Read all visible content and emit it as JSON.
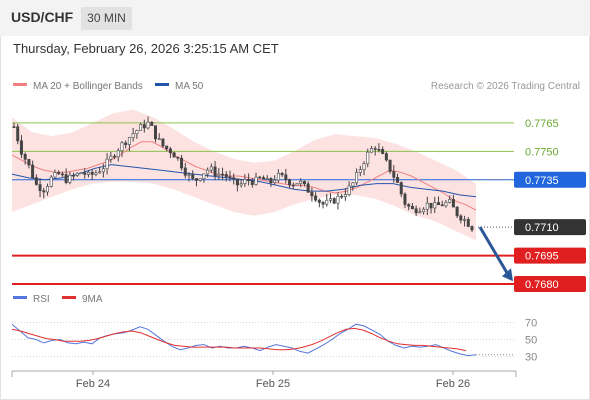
{
  "header": {
    "symbol": "USD/CHF",
    "timeframe": "30 MIN",
    "datetime": "Thursday, February 26, 2026 3:25:15 AM CET"
  },
  "legend": {
    "ma20": "MA 20 + Bollinger Bands",
    "ma50": "MA 50",
    "credit": "Research © 2026 Trading Central",
    "rsi": "RSI",
    "ma9": "9MA"
  },
  "colors": {
    "candle": "#444444",
    "ma20": "#f08080",
    "bands": "#fde2e2",
    "ma50": "#2255aa",
    "resistance": "#8bc34a",
    "pivot": "#2266dd",
    "support": "#e02020",
    "rsi": "#5577dd",
    "rsi_ma": "#e03030",
    "current_label": "#333333"
  },
  "chart_data": [
    {
      "type": "candlestick",
      "ylim": [
        0.76795,
        0.77797
      ],
      "x_labels": [
        "Feb 24",
        "Feb 25",
        "Feb 26"
      ],
      "current_price": "0.7710",
      "key_levels": [
        {
          "label": "0.7765",
          "value": 0.7765,
          "kind": "resistance"
        },
        {
          "label": "0.7750",
          "value": 0.775,
          "kind": "resistance"
        },
        {
          "label": "0.7735",
          "value": 0.7735,
          "kind": "pivot"
        },
        {
          "label": "0.7695",
          "value": 0.7695,
          "kind": "support"
        },
        {
          "label": "0.7680",
          "value": 0.768,
          "kind": "support"
        }
      ],
      "forecast_arrow": {
        "from": 0.771,
        "to": 0.7682
      },
      "close_path": [
        0.7763,
        0.775,
        0.7742,
        0.7732,
        0.773,
        0.7736,
        0.7738,
        0.7735,
        0.7737,
        0.7739,
        0.7737,
        0.7739,
        0.7742,
        0.7747,
        0.7752,
        0.7756,
        0.776,
        0.7763,
        0.7765,
        0.7757,
        0.7752,
        0.775,
        0.7745,
        0.7738,
        0.7734,
        0.7738,
        0.7741,
        0.7738,
        0.7738,
        0.7734,
        0.7732,
        0.7735,
        0.7734,
        0.7736,
        0.7733,
        0.7737,
        0.7736,
        0.7733,
        0.7734,
        0.773,
        0.7727,
        0.7722,
        0.7723,
        0.7725,
        0.7728,
        0.7732,
        0.774,
        0.7748,
        0.7753,
        0.7748,
        0.7741,
        0.7734,
        0.7723,
        0.7719,
        0.772,
        0.7722,
        0.7721,
        0.7722,
        0.7723,
        0.7717,
        0.7714,
        0.771
      ],
      "ma20": [
        0.7748,
        0.7745,
        0.7742,
        0.774,
        0.7739,
        0.7739,
        0.774,
        0.7741,
        0.7743,
        0.7745,
        0.7748,
        0.7752,
        0.7755,
        0.7755,
        0.7752,
        0.7748,
        0.7745,
        0.7742,
        0.774,
        0.7738,
        0.7737,
        0.7737,
        0.7736,
        0.7735,
        0.7734,
        0.7733,
        0.7732,
        0.7732,
        0.7731,
        0.7729,
        0.7728,
        0.7729,
        0.7731,
        0.7734,
        0.7737,
        0.774,
        0.7739,
        0.7737,
        0.7734,
        0.7731,
        0.7728,
        0.7724,
        0.7722,
        0.7719
      ],
      "ma50": [
        0.7738,
        0.7736,
        0.7735,
        0.7736,
        0.7738,
        0.7741,
        0.7743,
        0.7742,
        0.7741,
        0.774,
        0.7739,
        0.7738,
        0.7737,
        0.7736,
        0.7735,
        0.7734,
        0.7732,
        0.773,
        0.7729,
        0.7729,
        0.773,
        0.7732,
        0.7733,
        0.7733,
        0.7731,
        0.773,
        0.7729,
        0.7727,
        0.7726
      ],
      "upper_band": [
        0.7768,
        0.776,
        0.7758,
        0.776,
        0.7765,
        0.777,
        0.7772,
        0.7768,
        0.7762,
        0.7755,
        0.775,
        0.7746,
        0.7744,
        0.7745,
        0.775,
        0.7756,
        0.7759,
        0.7758,
        0.7757,
        0.7754,
        0.775,
        0.7745,
        0.774,
        0.7733
      ],
      "lower_band": [
        0.7718,
        0.7722,
        0.7726,
        0.773,
        0.7733,
        0.7734,
        0.7734,
        0.7733,
        0.773,
        0.7726,
        0.7722,
        0.7718,
        0.7716,
        0.7718,
        0.7722,
        0.7725,
        0.7727,
        0.7727,
        0.7725,
        0.7721,
        0.7716,
        0.7713,
        0.7708,
        0.7703
      ]
    },
    {
      "type": "line",
      "series": [
        {
          "name": "RSI",
          "values": [
            68,
            60,
            52,
            50,
            46,
            49,
            50,
            46,
            45,
            47,
            45,
            52,
            55,
            57,
            58,
            61,
            65,
            62,
            55,
            48,
            42,
            38,
            40,
            43,
            44,
            40,
            42,
            40,
            40,
            42,
            40,
            37,
            41,
            44,
            42,
            40,
            36,
            34,
            39,
            44,
            50,
            57,
            62,
            68,
            66,
            61,
            56,
            48,
            43,
            40,
            42,
            41,
            42,
            44,
            40,
            36,
            33,
            31,
            32
          ]
        },
        {
          "name": "9MA",
          "values": [
            62,
            60,
            57,
            54,
            51,
            50,
            48,
            48,
            48,
            49,
            51,
            54,
            57,
            59,
            60,
            58,
            54,
            50,
            46,
            43,
            42,
            41,
            41,
            41,
            41,
            41,
            40,
            40,
            40,
            40,
            39,
            38,
            38,
            39,
            41,
            44,
            48,
            53,
            58,
            62,
            63,
            61,
            57,
            52,
            48,
            45,
            44,
            43,
            43,
            42,
            41,
            40,
            39,
            37
          ]
        }
      ],
      "ylim": [
        20,
        80
      ],
      "y_ticks": [
        70,
        50,
        30
      ]
    }
  ]
}
